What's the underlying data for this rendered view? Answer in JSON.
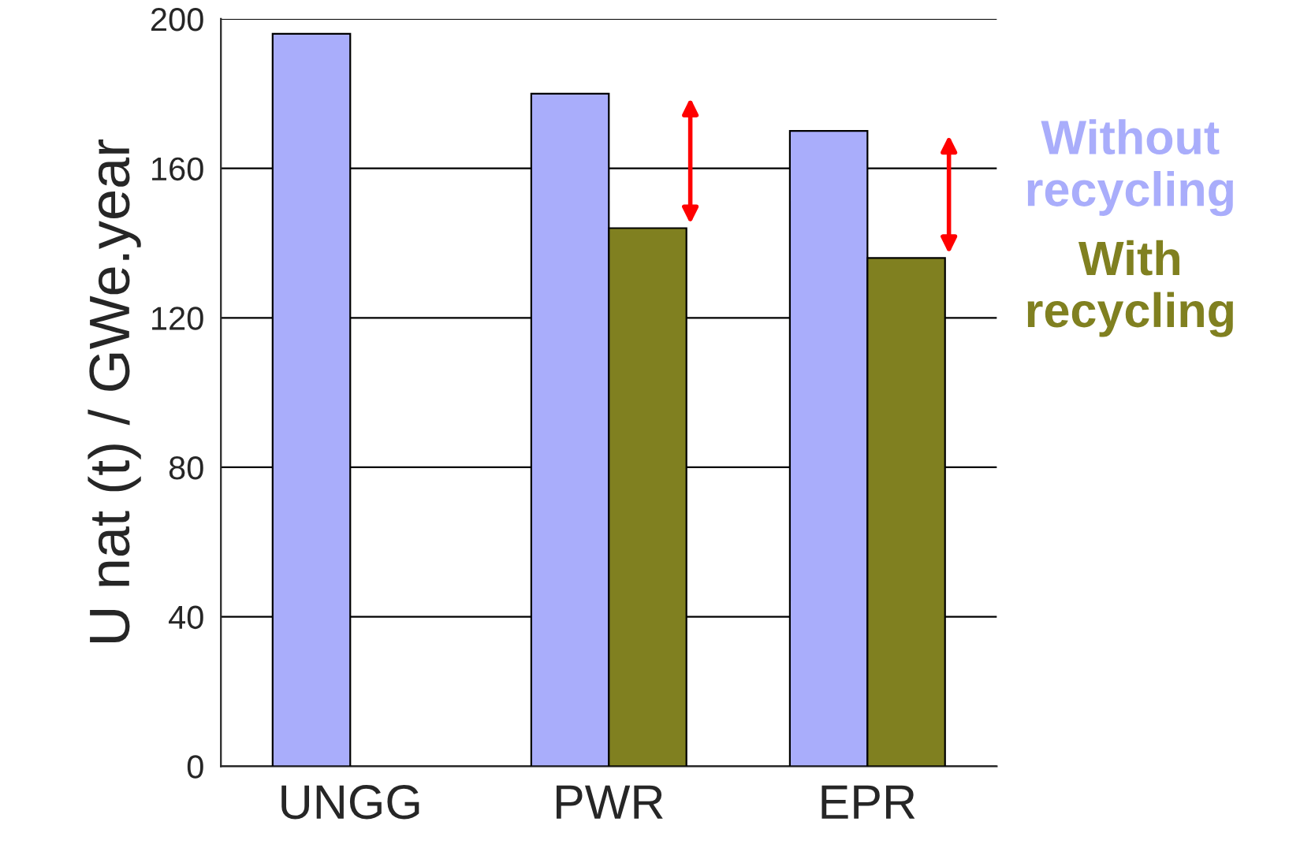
{
  "chart_data": {
    "type": "bar",
    "ylabel": "U nat (t) / GWe.year",
    "categories": [
      "UNGG",
      "PWR",
      "EPR"
    ],
    "series": [
      {
        "name": "Without recycling",
        "color": "#a9adfb",
        "values": [
          196,
          180,
          170
        ]
      },
      {
        "name": "With recycling",
        "color": "#808020",
        "values": [
          null,
          144,
          136
        ]
      }
    ],
    "ylim": [
      0,
      200
    ],
    "yticks": [
      0,
      40,
      80,
      120,
      160,
      200
    ],
    "grid": "y",
    "legend": "right"
  }
}
